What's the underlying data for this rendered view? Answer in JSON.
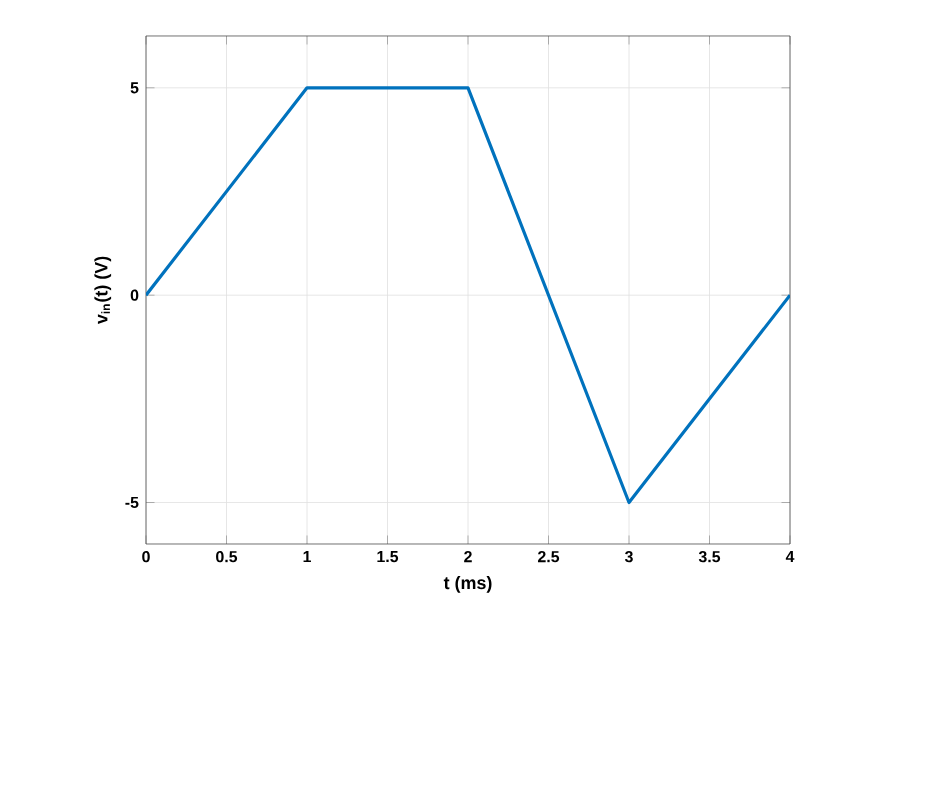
{
  "chart_data": {
    "type": "line",
    "xlabel": "t (ms)",
    "ylabel": "v$_{in}$(t) (V)",
    "x": [
      0,
      1,
      2,
      3,
      4
    ],
    "series": [
      {
        "color": "#0072bd",
        "values": [
          0,
          5,
          5,
          -5,
          0
        ]
      }
    ],
    "xlim": [
      0,
      4
    ],
    "ylim": [
      -6,
      6.25
    ],
    "xticks": [
      0,
      0.5,
      1,
      1.5,
      2,
      2.5,
      3,
      3.5,
      4
    ],
    "yticks": [
      -5,
      0,
      5
    ],
    "grid": true,
    "marker": "none",
    "line_style": "solid"
  }
}
